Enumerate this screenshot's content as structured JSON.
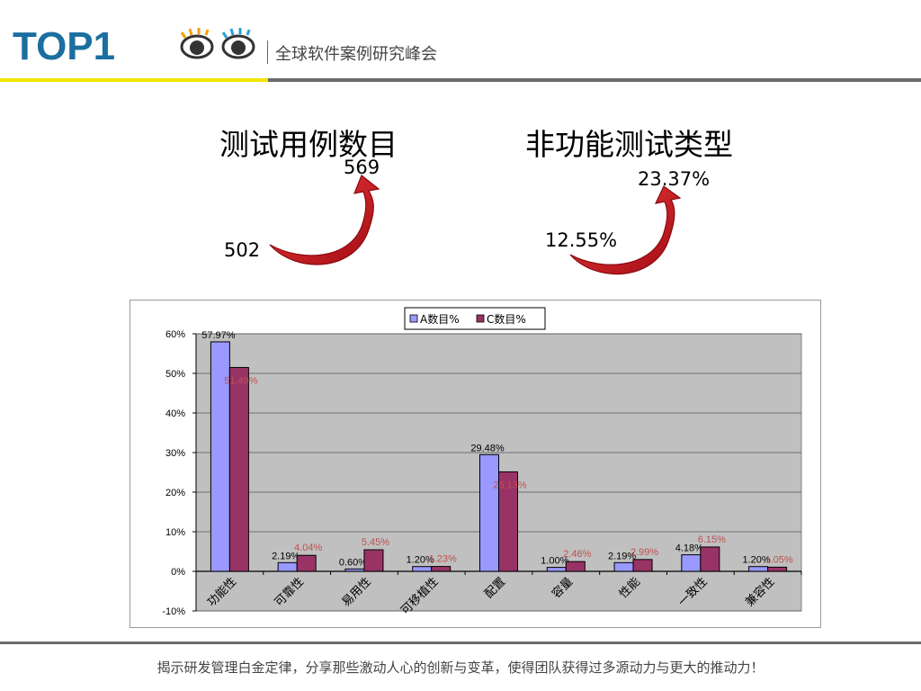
{
  "header": {
    "logo_text": "TOP1",
    "subtitle": "全球软件案例研究峰会",
    "colors": {
      "yellow_rule": "#f2e500",
      "gray_rule": "#6b6b6b"
    }
  },
  "stats": {
    "left": {
      "title": "测试用例数目",
      "from": "502",
      "to": "569"
    },
    "right": {
      "title": "非功能测试类型",
      "from": "12.55%",
      "to": "23.37%"
    },
    "arrow_color": "#c8141e"
  },
  "chart_data": {
    "type": "bar",
    "categories": [
      "功能性",
      "可靠性",
      "易用性",
      "可移植性",
      "配置",
      "容量",
      "性能",
      "一致性",
      "兼容性"
    ],
    "series": [
      {
        "name": "A数目%",
        "values": [
          57.97,
          2.19,
          0.6,
          1.2,
          29.48,
          1.0,
          2.19,
          4.18,
          1.2
        ],
        "labels": [
          "57.97%",
          "2.19%",
          "0.60%",
          "1.20%",
          "29.48%",
          "1.00%",
          "2.19%",
          "4.18%",
          "1.20%"
        ],
        "color": "#9999ff",
        "label_color": "#000000"
      },
      {
        "name": "C数目%",
        "values": [
          51.49,
          4.04,
          5.45,
          1.23,
          25.13,
          2.46,
          2.99,
          6.15,
          1.05
        ],
        "labels": [
          "51.49%",
          "4.04%",
          "5.45%",
          "1.23%",
          "25.13%",
          "2.46%",
          "2.99%",
          "6.15%",
          "1.05%"
        ],
        "color": "#993366",
        "label_color": "#c0504d"
      }
    ],
    "y_ticks": [
      "60%",
      "50%",
      "40%",
      "30%",
      "20%",
      "10%",
      "0%",
      "-10%"
    ],
    "ylim": [
      -10,
      60
    ],
    "grid": true,
    "legend": "top",
    "plot_background": "#c0c0c0"
  },
  "footer": {
    "text": "揭示研发管理白金定律，分享那些激动人心的创新与变革，使得团队获得过多源动力与更大的推动力！"
  }
}
